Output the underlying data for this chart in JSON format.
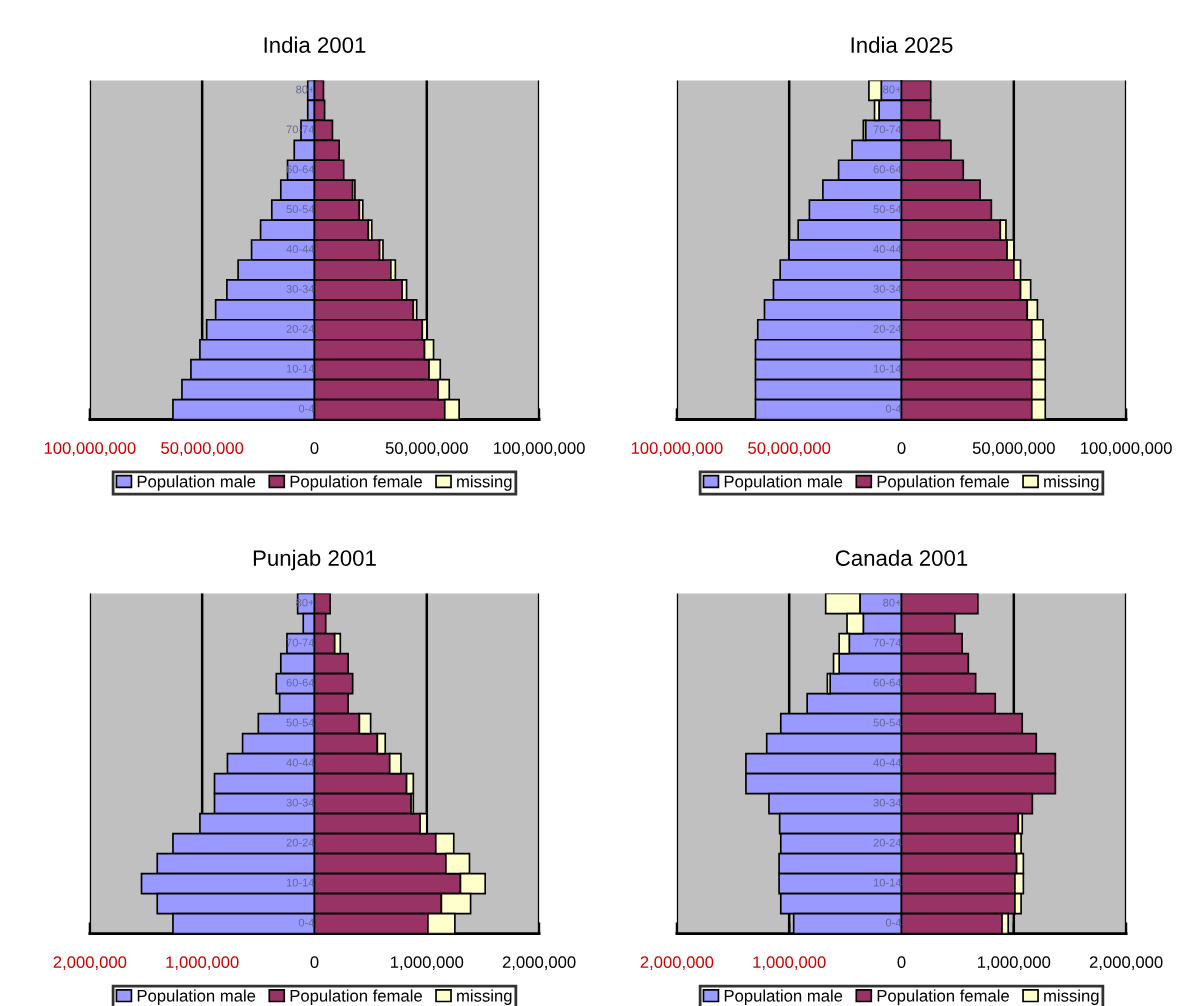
{
  "chart_data": [
    {
      "type": "bar",
      "orientation": "horizontal",
      "stacked": true,
      "title": "India 2001",
      "grid": "x",
      "legend": "bottom",
      "categories": [
        "80+",
        null,
        "70-74",
        null,
        "60-64",
        null,
        "50-54",
        null,
        "40-44",
        null,
        "30-34",
        null,
        "20-24",
        null,
        "10-14",
        null,
        "0-4"
      ],
      "series": [
        {
          "name": "Population male",
          "color": "#9999ff",
          "values": [
            -3000000,
            -3000000,
            -6000000,
            -9000000,
            -12000000,
            -15000000,
            -19000000,
            -24000000,
            -28000000,
            -34000000,
            -39000000,
            -44000000,
            -48000000,
            -51000000,
            -55000000,
            -59000000,
            -63000000
          ]
        },
        {
          "name": "Population female",
          "color": "#993366",
          "values": [
            4000000,
            4500000,
            8000000,
            11000000,
            13000000,
            17000000,
            20000000,
            24000000,
            29000000,
            34000000,
            39000000,
            44000000,
            48000000,
            49000000,
            51000000,
            55000000,
            58000000
          ]
        },
        {
          "name": "missing",
          "color": "#ffffcc",
          "values": [
            0,
            0,
            0,
            0,
            0,
            1000000,
            1500000,
            1500000,
            1500000,
            2000000,
            2000000,
            1500000,
            2000000,
            4000000,
            5000000,
            5000000,
            6400000
          ]
        }
      ],
      "xlim": [
        -100000000,
        100000000
      ],
      "xticks": [
        {
          "value": -100000000,
          "label": "100,000,000"
        },
        {
          "value": -50000000,
          "label": "50,000,000"
        },
        0,
        {
          "value": 50000000,
          "label": "50,000,000"
        },
        {
          "value": 100000000,
          "label": "100,000,000"
        }
      ]
    },
    {
      "type": "bar",
      "orientation": "horizontal",
      "stacked": true,
      "title": "India 2025",
      "grid": "x",
      "legend": "bottom",
      "categories": [
        "80+",
        null,
        "70-74",
        null,
        "60-64",
        null,
        "50-54",
        null,
        "40-44",
        null,
        "30-34",
        null,
        "20-24",
        null,
        "10-14",
        null,
        "0-4"
      ],
      "series": [
        {
          "name": "Population male",
          "color": "#9999ff",
          "values": [
            -9000000,
            -10000000,
            -16000000,
            -22000000,
            -28000000,
            -35000000,
            -41000000,
            -46000000,
            -50000000,
            -54000000,
            -57000000,
            -61000000,
            -64000000,
            -65000000,
            -65000000,
            -65000000,
            -65000000
          ]
        },
        {
          "name": "Population female",
          "color": "#993366",
          "values": [
            13000000,
            13000000,
            17000000,
            22000000,
            27500000,
            35000000,
            40000000,
            44000000,
            47000000,
            50000000,
            53000000,
            56000000,
            58000000,
            58000000,
            58000000,
            58000000,
            58000000
          ]
        },
        {
          "name": "missing",
          "color": "#ffffcc",
          "values": [
            -5500000,
            -2000000,
            -1000000,
            0,
            0,
            0,
            null,
            2500000,
            3000000,
            3000000,
            4500000,
            4500000,
            5000000,
            6000000,
            6000000,
            6000000,
            6000000
          ]
        }
      ],
      "xlim": [
        -100000000,
        100000000
      ],
      "xticks": [
        {
          "value": -100000000,
          "label": "100,000,000"
        },
        {
          "value": -50000000,
          "label": "50,000,000"
        },
        0,
        {
          "value": 50000000,
          "label": "50,000,000"
        },
        {
          "value": 100000000,
          "label": "100,000,000"
        }
      ]
    },
    {
      "type": "bar",
      "orientation": "horizontal",
      "stacked": true,
      "title": "Punjab 2001",
      "grid": "x",
      "legend": "bottom",
      "categories": [
        "80+",
        null,
        "70-74",
        null,
        "60-64",
        null,
        "50-54",
        null,
        "40-44",
        null,
        "30-34",
        null,
        "20-24",
        null,
        "10-14",
        null,
        "0-4"
      ],
      "series": [
        {
          "name": "Population male",
          "color": "#9999ff",
          "values": [
            -150000,
            -100000,
            -245000,
            -300000,
            -340000,
            -310000,
            -500000,
            -640000,
            -775000,
            -890000,
            -890000,
            -1020000,
            -1260000,
            -1400000,
            -1540000,
            -1400000,
            -1260000
          ]
        },
        {
          "name": "Population female",
          "color": "#993366",
          "values": [
            140000,
            100000,
            180000,
            300000,
            340000,
            300000,
            400000,
            560000,
            670000,
            820000,
            860000,
            940000,
            1080000,
            1170000,
            1300000,
            1130000,
            1010000
          ]
        },
        {
          "name": "missing",
          "color": "#ffffcc",
          "values": [
            null,
            0,
            50000,
            0,
            0,
            0,
            100000,
            70000,
            100000,
            60000,
            20000,
            60000,
            160000,
            210000,
            220000,
            260000,
            240000
          ]
        }
      ],
      "xlim": [
        -2000000,
        2000000
      ],
      "xticks": [
        {
          "value": -2000000,
          "label": "2,000,000"
        },
        {
          "value": -1000000,
          "label": "1,000,000"
        },
        0,
        {
          "value": 1000000,
          "label": "1,000,000"
        },
        {
          "value": 2000000,
          "label": "2,000,000"
        }
      ]
    },
    {
      "type": "bar",
      "orientation": "horizontal",
      "stacked": true,
      "title": "Canada 2001",
      "grid": "x",
      "legend": "bottom",
      "categories": [
        "80+",
        null,
        "70-74",
        null,
        "60-64",
        null,
        "50-54",
        null,
        "40-44",
        null,
        "30-34",
        null,
        "20-24",
        null,
        "10-14",
        null,
        "0-4"
      ],
      "series": [
        {
          "name": "Population male",
          "color": "#9999ff",
          "values": [
            -370000,
            -340000,
            -465000,
            -555000,
            -635000,
            -840000,
            -1075000,
            -1200000,
            -1385000,
            -1385000,
            -1180000,
            -1085000,
            -1075000,
            -1090000,
            -1090000,
            -1075000,
            -960000
          ]
        },
        {
          "name": "Population female",
          "color": "#993366",
          "values": [
            680000,
            475000,
            540000,
            595000,
            660000,
            835000,
            1075000,
            1200000,
            1370000,
            1370000,
            1165000,
            1040000,
            1010000,
            1025000,
            1010000,
            1010000,
            895000
          ]
        },
        {
          "name": "missing",
          "color": "#ffffcc",
          "values": [
            -305000,
            -145000,
            -90000,
            -50000,
            -25000,
            0,
            0,
            0,
            0,
            0,
            0,
            35000,
            55000,
            60000,
            75000,
            55000,
            55000
          ]
        }
      ],
      "xlim": [
        -2000000,
        2000000
      ],
      "xticks": [
        {
          "value": -2000000,
          "label": "2,000,000"
        },
        {
          "value": -1000000,
          "label": "1,000,000"
        },
        0,
        {
          "value": 1000000,
          "label": "1,000,000"
        },
        {
          "value": 2000000,
          "label": "2,000,000"
        }
      ]
    }
  ]
}
